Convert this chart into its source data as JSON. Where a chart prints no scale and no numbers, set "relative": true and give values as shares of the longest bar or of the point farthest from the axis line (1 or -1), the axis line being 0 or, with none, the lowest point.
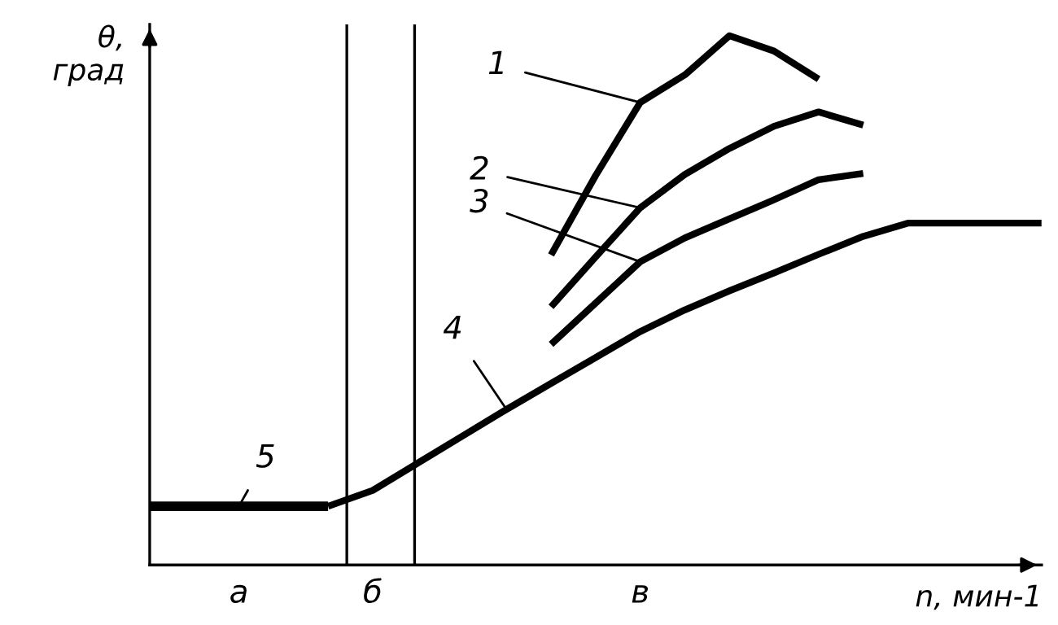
{
  "chart_data": {
    "type": "line",
    "relative": true,
    "xlabel": "n, мин-1",
    "ylabel": "θ,\nград",
    "categories": [
      null,
      null,
      "а",
      null,
      null,
      "б",
      null,
      null,
      null,
      null,
      null,
      "в",
      null,
      null,
      null,
      null,
      null,
      null,
      null,
      null,
      null
    ],
    "legend": false,
    "grid": false,
    "marker": "none",
    "line_style": "solid",
    "series": [
      {
        "name": "1",
        "color": "#000000",
        "values": [
          null,
          null,
          null,
          null,
          null,
          null,
          null,
          null,
          null,
          0.586,
          0.736,
          0.874,
          0.926,
          1.0,
          0.971,
          0.918,
          null,
          null,
          null,
          null,
          null
        ]
      },
      {
        "name": "2",
        "color": "#000000",
        "values": [
          null,
          null,
          null,
          null,
          null,
          null,
          null,
          null,
          null,
          0.488,
          0.582,
          0.675,
          0.738,
          0.787,
          0.829,
          0.856,
          0.831,
          null,
          null,
          null,
          null
        ]
      },
      {
        "name": "3",
        "color": "#000000",
        "values": [
          null,
          null,
          null,
          null,
          null,
          null,
          null,
          null,
          null,
          0.417,
          0.495,
          0.573,
          0.618,
          0.654,
          0.69,
          0.728,
          0.74,
          null,
          null,
          null,
          null
        ]
      },
      {
        "name": "4",
        "color": "#000000",
        "values": [
          null,
          null,
          null,
          null,
          0.111,
          0.141,
          0.192,
          0.243,
          0.294,
          0.343,
          0.392,
          0.441,
          0.482,
          0.518,
          0.552,
          0.587,
          0.621,
          0.646,
          0.646,
          0.646,
          0.646
        ]
      },
      {
        "name": "5",
        "color": "#000000",
        "values": [
          0.111,
          0.111,
          0.111,
          0.111,
          0.111,
          null,
          null,
          null,
          null,
          null,
          null,
          null,
          null,
          null,
          null,
          null,
          null,
          null,
          null,
          null,
          null
        ]
      }
    ]
  }
}
